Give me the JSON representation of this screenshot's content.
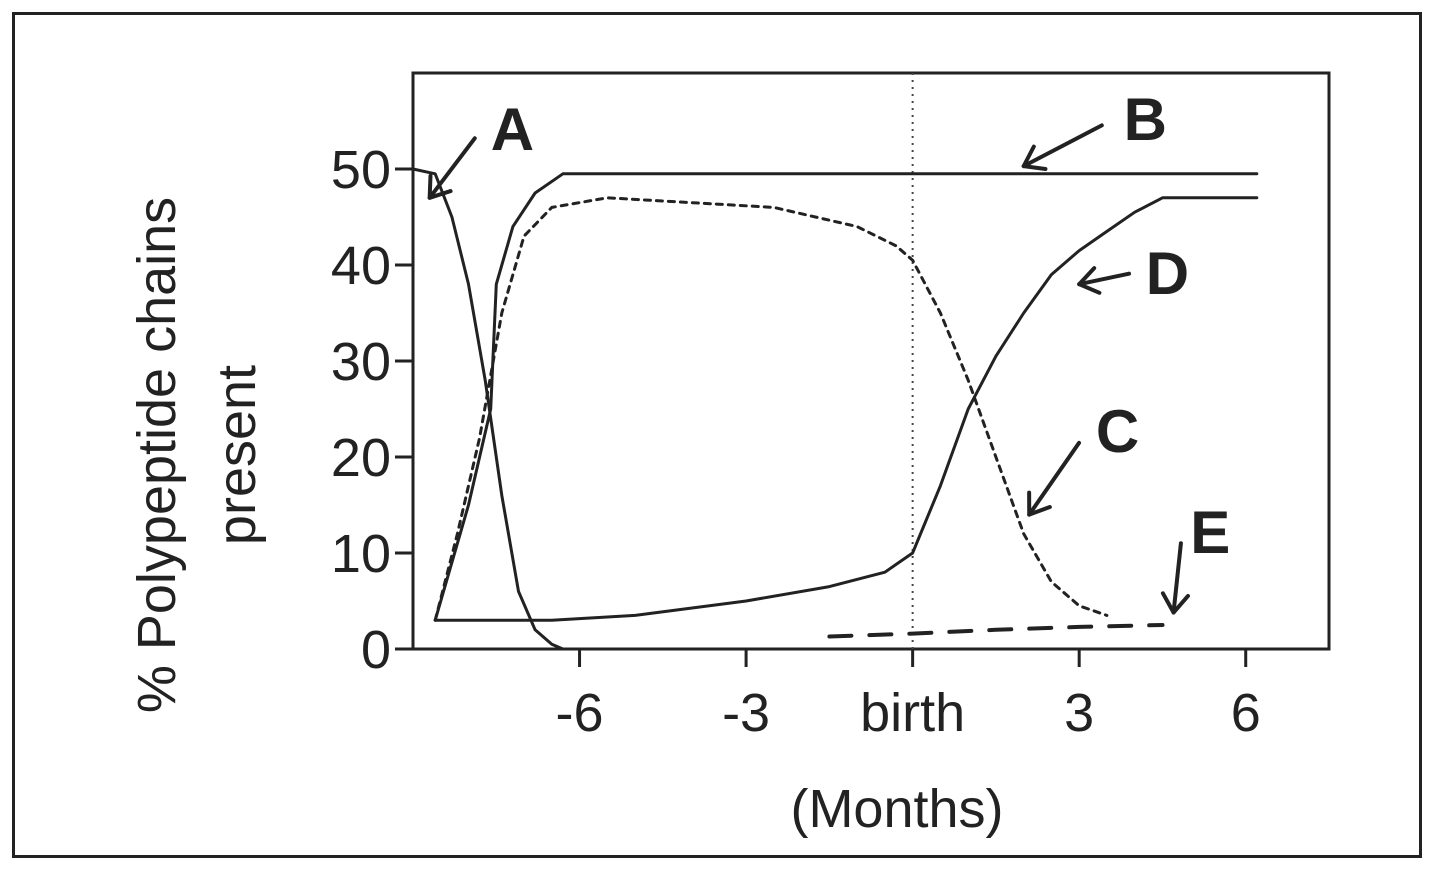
{
  "chart_data": {
    "type": "line",
    "title": "",
    "xlabel": "(Months)",
    "ylabel": [
      "% Polypeptide chains",
      "present"
    ],
    "xlim": [
      -9,
      7.5
    ],
    "ylim": [
      0,
      60
    ],
    "xticks": [
      {
        "value": -6,
        "label": "-6"
      },
      {
        "value": -3,
        "label": "-3"
      },
      {
        "value": 0,
        "label": "birth"
      },
      {
        "value": 3,
        "label": "3"
      },
      {
        "value": 6,
        "label": "6"
      }
    ],
    "yticks": [
      {
        "value": 0,
        "label": "0"
      },
      {
        "value": 10,
        "label": "10"
      },
      {
        "value": 20,
        "label": "20"
      },
      {
        "value": 30,
        "label": "30"
      },
      {
        "value": 40,
        "label": "40"
      },
      {
        "value": 50,
        "label": "50"
      }
    ],
    "reference_line": {
      "x": 0,
      "style": "dotted"
    },
    "series": [
      {
        "name": "A",
        "style": "solid",
        "x": [
          -9.0,
          -8.6,
          -8.3,
          -8.0,
          -7.7,
          -7.4,
          -7.1,
          -6.8,
          -6.5,
          -6.3
        ],
        "y": [
          50,
          49.5,
          45,
          38,
          28,
          16,
          6,
          2,
          0.5,
          0
        ],
        "label_at": [
          -7.6,
          52
        ],
        "arrow_to": [
          -8.7,
          47
        ]
      },
      {
        "name": "B",
        "style": "solid",
        "x": [
          -8.6,
          -8.0,
          -7.6,
          -7.5,
          -7.2,
          -6.8,
          -6.3,
          0,
          3,
          6.2
        ],
        "y": [
          3,
          15,
          25,
          38,
          44,
          47.5,
          49.5,
          49.5,
          49.5,
          49.5
        ],
        "label_at": [
          3.8,
          53
        ],
        "arrow_to": [
          2.0,
          50.3
        ]
      },
      {
        "name": "C",
        "style": "dashed",
        "x": [
          -8.6,
          -8.2,
          -7.8,
          -7.4,
          -7.0,
          -6.5,
          -5.5,
          -4.0,
          -2.5,
          -1.0,
          -0.3,
          0,
          0.5,
          1.0,
          1.5,
          2.0,
          2.5,
          3.0,
          3.5
        ],
        "y": [
          3,
          12,
          22,
          35,
          43,
          46,
          47,
          46.5,
          46,
          44,
          42,
          40.5,
          35,
          28,
          20,
          12,
          7,
          4.5,
          3.5
        ],
        "label_at": [
          3.3,
          20.5
        ],
        "arrow_to": [
          2.1,
          14
        ]
      },
      {
        "name": "D",
        "style": "solid",
        "x": [
          -8.6,
          -6.5,
          -5.0,
          -3.0,
          -1.5,
          -0.5,
          0,
          0.5,
          1.0,
          1.5,
          2.0,
          2.5,
          3.0,
          3.5,
          4.0,
          4.5,
          5.0,
          6.2
        ],
        "y": [
          3,
          3,
          3.5,
          5,
          6.5,
          8,
          10,
          17,
          25,
          30.5,
          35,
          39,
          41.5,
          43.5,
          45.5,
          47,
          47,
          47
        ],
        "label_at": [
          4.2,
          37
        ],
        "arrow_to": [
          3.0,
          38
        ]
      },
      {
        "name": "E",
        "style": "dashed",
        "x": [
          -1.5,
          0,
          1.5,
          3.0,
          4.5
        ],
        "y": [
          1.3,
          1.6,
          2.0,
          2.3,
          2.5
        ],
        "label_at": [
          5.0,
          10.0
        ],
        "arrow_to": [
          4.7,
          3.8
        ]
      }
    ]
  }
}
